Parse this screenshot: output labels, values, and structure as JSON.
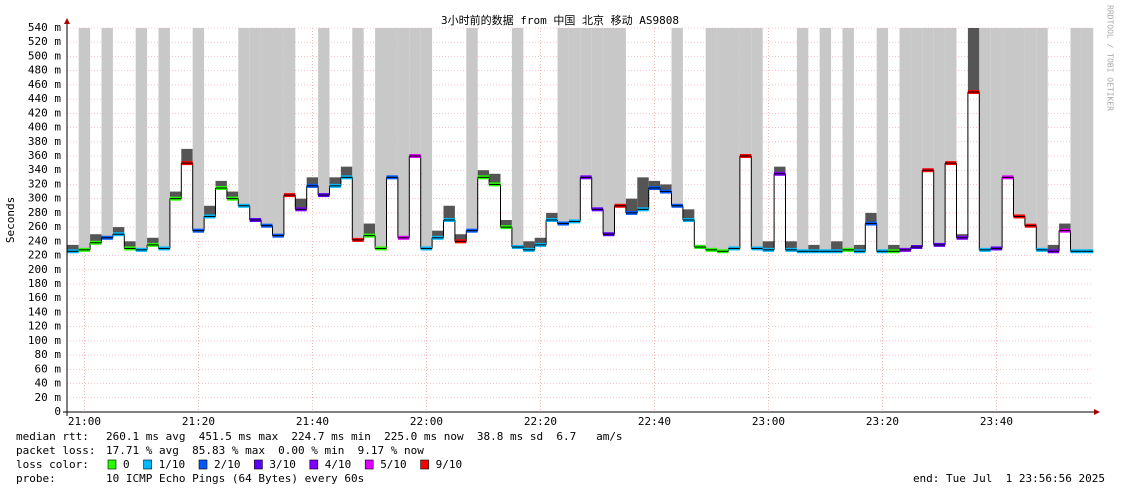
{
  "chart_data": {
    "type": "smokeping",
    "title": "3小时前的数据 from 中国 北京 移动 AS9808",
    "y_label": "Seconds",
    "side_note": "RRDTOOL / TOBI OETIKER",
    "categories": [
      null,
      "21:00",
      null,
      null,
      null,
      null,
      null,
      null,
      null,
      null,
      null,
      "21:20",
      null,
      null,
      null,
      null,
      null,
      null,
      null,
      null,
      null,
      "21:40",
      null,
      null,
      null,
      null,
      null,
      null,
      null,
      null,
      null,
      "22:00",
      null,
      null,
      null,
      null,
      null,
      null,
      null,
      null,
      null,
      "22:20",
      null,
      null,
      null,
      null,
      null,
      null,
      null,
      null,
      null,
      "22:40",
      null,
      null,
      null,
      null,
      null,
      null,
      null,
      null,
      null,
      "23:00",
      null,
      null,
      null,
      null,
      null,
      null,
      null,
      null,
      null,
      "23:20",
      null,
      null,
      null,
      null,
      null,
      null,
      null,
      null,
      null,
      "23:40",
      null,
      null,
      null,
      null,
      null,
      null,
      null,
      null
    ],
    "median": [
      226,
      228,
      238,
      245,
      250,
      230,
      228,
      235,
      230,
      300,
      350,
      255,
      275,
      315,
      300,
      290,
      270,
      262,
      248,
      305,
      285,
      318,
      305,
      318,
      330,
      242,
      248,
      230,
      330,
      245,
      360,
      230,
      245,
      270,
      240,
      255,
      330,
      320,
      260,
      232,
      228,
      235,
      270,
      265,
      268,
      330,
      285,
      250,
      290,
      280,
      285,
      315,
      310,
      290,
      270,
      232,
      228,
      226,
      230,
      360,
      230,
      228,
      335,
      228,
      226,
      226,
      226,
      226,
      228,
      226,
      265,
      226,
      226,
      228,
      232,
      340,
      235,
      350,
      245,
      450,
      228,
      230,
      330,
      275,
      262,
      228,
      226,
      255,
      226,
      226
    ],
    "max": [
      235,
      540,
      250,
      540,
      260,
      240,
      540,
      245,
      540,
      310,
      370,
      540,
      290,
      325,
      310,
      540,
      540,
      540,
      540,
      540,
      300,
      330,
      540,
      330,
      345,
      540,
      265,
      540,
      540,
      540,
      540,
      540,
      255,
      290,
      250,
      540,
      340,
      335,
      270,
      540,
      240,
      245,
      280,
      540,
      540,
      540,
      540,
      540,
      540,
      300,
      330,
      325,
      320,
      540,
      285,
      235,
      540,
      540,
      540,
      540,
      540,
      240,
      345,
      240,
      540,
      235,
      540,
      240,
      540,
      235,
      280,
      540,
      235,
      540,
      540,
      540,
      540,
      540,
      250,
      540,
      540,
      540,
      540,
      540,
      540,
      540,
      235,
      265,
      540,
      540
    ],
    "loss": [
      1,
      0,
      0,
      2,
      1,
      0,
      1,
      0,
      1,
      0,
      9,
      2,
      1,
      0,
      0,
      1,
      3,
      2,
      2,
      9,
      4,
      2,
      3,
      1,
      1,
      9,
      0,
      0,
      2,
      5,
      5,
      1,
      1,
      1,
      9,
      2,
      0,
      0,
      0,
      1,
      1,
      1,
      1,
      2,
      1,
      4,
      3,
      3,
      9,
      2,
      1,
      2,
      2,
      2,
      1,
      0,
      0,
      0,
      1,
      9,
      1,
      1,
      4,
      1,
      1,
      1,
      1,
      1,
      0,
      1,
      2,
      1,
      0,
      4,
      3,
      9,
      3,
      9,
      4,
      9,
      1,
      3,
      5,
      9,
      9,
      1,
      4,
      5,
      1,
      1
    ],
    "loss_legend": [
      {
        "loss": 0,
        "label": "0",
        "color": "#26ff00"
      },
      {
        "loss": 1,
        "label": "1/10",
        "color": "#00b8ff"
      },
      {
        "loss": 2,
        "label": "2/10",
        "color": "#0059ff"
      },
      {
        "loss": 3,
        "label": "3/10",
        "color": "#5e00ff"
      },
      {
        "loss": 4,
        "label": "4/10",
        "color": "#7e00ff"
      },
      {
        "loss": 5,
        "label": "5/10",
        "color": "#dd00ff"
      },
      {
        "loss": 9,
        "label": "9/10",
        "color": "#ff0000"
      }
    ],
    "ylim": [
      0,
      540
    ],
    "yticks": [
      0,
      {
        "value": 20,
        "label": "20 m"
      },
      {
        "value": 40,
        "label": "40 m"
      },
      {
        "value": 60,
        "label": "60 m"
      },
      {
        "value": 80,
        "label": "80 m"
      },
      {
        "value": 100,
        "label": "100 m"
      },
      {
        "value": 120,
        "label": "120 m"
      },
      {
        "value": 140,
        "label": "140 m"
      },
      {
        "value": 160,
        "label": "160 m"
      },
      {
        "value": 180,
        "label": "180 m"
      },
      {
        "value": 200,
        "label": "200 m"
      },
      {
        "value": 220,
        "label": "220 m"
      },
      {
        "value": 240,
        "label": "240 m"
      },
      {
        "value": 260,
        "label": "260 m"
      },
      {
        "value": 280,
        "label": "280 m"
      },
      {
        "value": 300,
        "label": "300 m"
      },
      {
        "value": 320,
        "label": "320 m"
      },
      {
        "value": 340,
        "label": "340 m"
      },
      {
        "value": 360,
        "label": "360 m"
      },
      {
        "value": 380,
        "label": "380 m"
      },
      {
        "value": 400,
        "label": "400 m"
      },
      {
        "value": 420,
        "label": "420 m"
      },
      {
        "value": 440,
        "label": "440 m"
      },
      {
        "value": 460,
        "label": "460 m"
      },
      {
        "value": 480,
        "label": "480 m"
      },
      {
        "value": 500,
        "label": "500 m"
      },
      {
        "value": 520,
        "label": "520 m"
      },
      {
        "value": 540,
        "label": "540 m"
      }
    ],
    "grid": true,
    "footer": {
      "median_label": "median rtt:",
      "median_text": "260.1 ms avg  451.5 ms max  224.7 ms min  225.0 ms now  38.8 ms sd  6.7   am/s",
      "loss_label": "packet loss:",
      "loss_text": "17.71 % avg  85.83 % max  0.00 % min  9.17 % now",
      "color_label": "loss color:",
      "probe_label": "probe:",
      "probe_text": "10 ICMP Echo Pings (64 Bytes) every 60s",
      "end_text": "end: Tue Jul  1 23:56:56 2025"
    }
  }
}
